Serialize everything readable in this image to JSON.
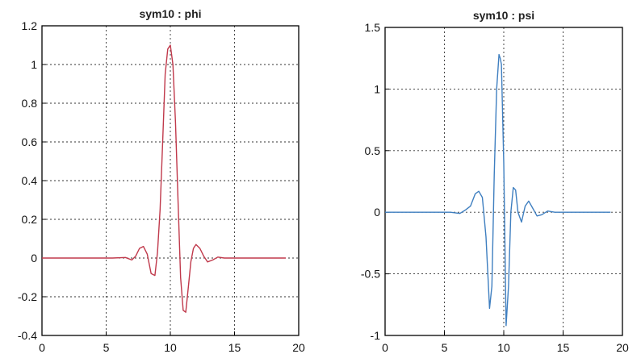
{
  "chart_data": [
    {
      "type": "line",
      "title": "sym10 : phi",
      "xlabel": "",
      "ylabel": "",
      "xlim": [
        0,
        20
      ],
      "ylim": [
        -0.4,
        1.2
      ],
      "xticks": [
        0,
        5,
        10,
        15,
        20
      ],
      "yticks": [
        -0.4,
        -0.2,
        0,
        0.2,
        0.4,
        0.6,
        0.8,
        1,
        1.2
      ],
      "grid": true,
      "color": "#c0394b",
      "series": [
        {
          "x": [
            0,
            5.5,
            6.5,
            7.0,
            7.3,
            7.6,
            7.9,
            8.2,
            8.5,
            8.8,
            9.0,
            9.2,
            9.4,
            9.6,
            9.8,
            10.0,
            10.2,
            10.4,
            10.6,
            10.8,
            11.0,
            11.2,
            11.4,
            11.6,
            11.8,
            12.0,
            12.3,
            12.6,
            12.9,
            13.3,
            13.7,
            14.2,
            15.0,
            19.0
          ],
          "y": [
            0,
            0,
            0.003,
            -0.01,
            0.01,
            0.05,
            0.06,
            0.02,
            -0.08,
            -0.09,
            0.03,
            0.25,
            0.6,
            0.95,
            1.08,
            1.1,
            1.0,
            0.7,
            0.3,
            -0.1,
            -0.27,
            -0.28,
            -0.15,
            -0.02,
            0.05,
            0.07,
            0.05,
            0.01,
            -0.02,
            -0.01,
            0.005,
            0,
            0,
            0
          ]
        }
      ]
    },
    {
      "type": "line",
      "title": "sym10 : psi",
      "xlabel": "",
      "ylabel": "",
      "xlim": [
        0,
        20
      ],
      "ylim": [
        -1,
        1.5
      ],
      "xticks": [
        0,
        5,
        10,
        15,
        20
      ],
      "yticks": [
        -1,
        -0.5,
        0,
        0.5,
        1,
        1.5
      ],
      "grid": true,
      "color": "#3f7fc0",
      "series": [
        {
          "x": [
            0,
            5.5,
            6.3,
            6.8,
            7.2,
            7.6,
            7.9,
            8.2,
            8.5,
            8.8,
            9.0,
            9.2,
            9.4,
            9.6,
            9.7,
            9.8,
            10.0,
            10.2,
            10.4,
            10.6,
            10.8,
            11.0,
            11.2,
            11.5,
            11.8,
            12.1,
            12.4,
            12.8,
            13.2,
            13.7,
            14.3,
            15.0,
            19.0
          ],
          "y": [
            0,
            0,
            -0.01,
            0.02,
            0.05,
            0.15,
            0.17,
            0.12,
            -0.2,
            -0.78,
            -0.6,
            0.3,
            1.0,
            1.28,
            1.25,
            1.2,
            0.4,
            -0.92,
            -0.6,
            0.0,
            0.2,
            0.18,
            0.0,
            -0.08,
            0.05,
            0.09,
            0.04,
            -0.03,
            -0.02,
            0.01,
            0,
            0,
            0
          ]
        }
      ]
    }
  ]
}
